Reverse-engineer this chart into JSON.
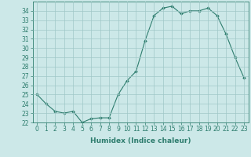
{
  "x": [
    0,
    1,
    2,
    3,
    4,
    5,
    6,
    7,
    8,
    9,
    10,
    11,
    12,
    13,
    14,
    15,
    16,
    17,
    18,
    19,
    20,
    21,
    22,
    23
  ],
  "y": [
    25.0,
    24.0,
    23.2,
    23.0,
    23.2,
    22.0,
    22.4,
    22.5,
    22.5,
    25.0,
    26.5,
    27.5,
    30.8,
    33.5,
    34.3,
    34.5,
    33.7,
    34.0,
    34.0,
    34.3,
    33.5,
    31.5,
    29.0,
    26.8
  ],
  "line_color": "#2e7d6e",
  "marker": "D",
  "marker_size": 2,
  "bg_color": "#cce8e8",
  "grid_color": "#a0c8c8",
  "xlabel": "Humidex (Indice chaleur)",
  "ylim": [
    22,
    35
  ],
  "xlim": [
    -0.5,
    23.5
  ],
  "yticks": [
    22,
    23,
    24,
    25,
    26,
    27,
    28,
    29,
    30,
    31,
    32,
    33,
    34
  ],
  "xticks": [
    0,
    1,
    2,
    3,
    4,
    5,
    6,
    7,
    8,
    9,
    10,
    11,
    12,
    13,
    14,
    15,
    16,
    17,
    18,
    19,
    20,
    21,
    22,
    23
  ],
  "label_fontsize": 6.5,
  "tick_fontsize": 5.5
}
